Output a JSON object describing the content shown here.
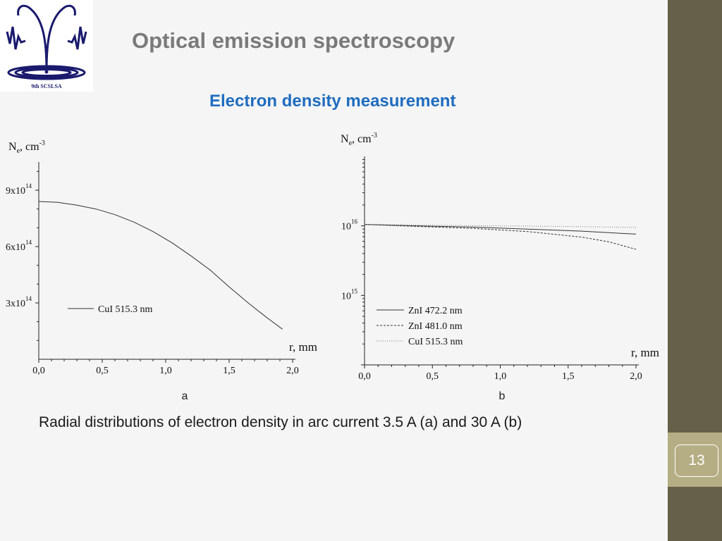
{
  "title": "Optical emission spectroscopy",
  "subtitle": "Electron density measurement",
  "caption": "Radial distributions of electron density in arc current 3.5 A (a) and 30 A (b)",
  "page_number": "13",
  "logo": {
    "text": "9th SCSLSA",
    "icon": "fountain-logo-icon"
  },
  "colors": {
    "title": "#7a7a7a",
    "subtitle": "#1f6cc0",
    "sidebar": "#656049",
    "page_box": "#b5ae84"
  },
  "chart_data": [
    {
      "type": "line",
      "panel_label": "a",
      "ylabel_base": "N",
      "ylabel_sub": "e",
      "ylabel_unit": ", cm",
      "ylabel_sup": "-3",
      "xlabel": "r, mm",
      "xlim": [
        0,
        2.0
      ],
      "ylim": [
        0,
        1050000000000000.0
      ],
      "yscale": "linear",
      "x_ticks": [
        {
          "value": 0,
          "label": "0,0"
        },
        {
          "value": 0.5,
          "label": "0,5"
        },
        {
          "value": 1.0,
          "label": "1,0"
        },
        {
          "value": 1.5,
          "label": "1,5"
        },
        {
          "value": 2.0,
          "label": "2,0"
        }
      ],
      "y_ticks": [
        {
          "value": 300000000000000.0,
          "mant": "3x10",
          "exp": "14"
        },
        {
          "value": 600000000000000.0,
          "mant": "6x10",
          "exp": "14"
        },
        {
          "value": 900000000000000.0,
          "mant": "9x10",
          "exp": "14"
        }
      ],
      "series": [
        {
          "name": "CuI 515.3 nm",
          "style": "solid",
          "x": [
            0,
            0.15,
            0.3,
            0.45,
            0.6,
            0.75,
            0.9,
            1.05,
            1.2,
            1.35,
            1.5,
            1.65,
            1.8,
            1.92
          ],
          "y": [
            840000000000000.0,
            835000000000000.0,
            820000000000000.0,
            800000000000000.0,
            770000000000000.0,
            730000000000000.0,
            680000000000000.0,
            620000000000000.0,
            550000000000000.0,
            475000000000000.0,
            385000000000000.0,
            300000000000000.0,
            220000000000000.0,
            160000000000000.0
          ]
        }
      ],
      "grid": false,
      "legend_position": "lower-center"
    },
    {
      "type": "line",
      "panel_label": "b",
      "ylabel_base": "N",
      "ylabel_sub": "e",
      "ylabel_unit": ", cm",
      "ylabel_sup": "-3",
      "xlabel": "r, mm",
      "xlim": [
        0,
        2.0
      ],
      "ylim": [
        100000000000000.0,
        1e+17
      ],
      "yscale": "log",
      "x_ticks": [
        {
          "value": 0,
          "label": "0,0"
        },
        {
          "value": 0.5,
          "label": "0,5"
        },
        {
          "value": 1.0,
          "label": "1,0"
        },
        {
          "value": 1.5,
          "label": "1,5"
        },
        {
          "value": 2.0,
          "label": "2,0"
        }
      ],
      "y_ticks": [
        {
          "value": 1000000000000000.0,
          "mant": "10",
          "exp": "15"
        },
        {
          "value": 1e+16,
          "mant": "10",
          "exp": "16"
        }
      ],
      "series": [
        {
          "name": "ZnI 472.2 nm",
          "style": "solid",
          "x": [
            0,
            0.4,
            0.8,
            1.2,
            1.6,
            2.0
          ],
          "y": [
            1.05e+16,
            1e+16,
            9600000000000000.0,
            9000000000000000.0,
            8400000000000000.0,
            7600000000000000.0
          ]
        },
        {
          "name": "ZnI 481.0 nm",
          "style": "dashed",
          "x": [
            0,
            0.4,
            0.8,
            1.2,
            1.6,
            1.8,
            2.0
          ],
          "y": [
            1.05e+16,
            9800000000000000.0,
            9200000000000000.0,
            8300000000000000.0,
            6900000000000000.0,
            5900000000000000.0,
            4600000000000000.0
          ]
        },
        {
          "name": "CuI 515.3 nm",
          "style": "dotted",
          "x": [
            0,
            0.5,
            1.0,
            1.5,
            2.0
          ],
          "y": [
            1.05e+16,
            1.02e+16,
            1e+16,
            9800000000000000.0,
            9500000000000000.0
          ]
        }
      ],
      "grid": false,
      "legend_position": "lower-center"
    }
  ]
}
